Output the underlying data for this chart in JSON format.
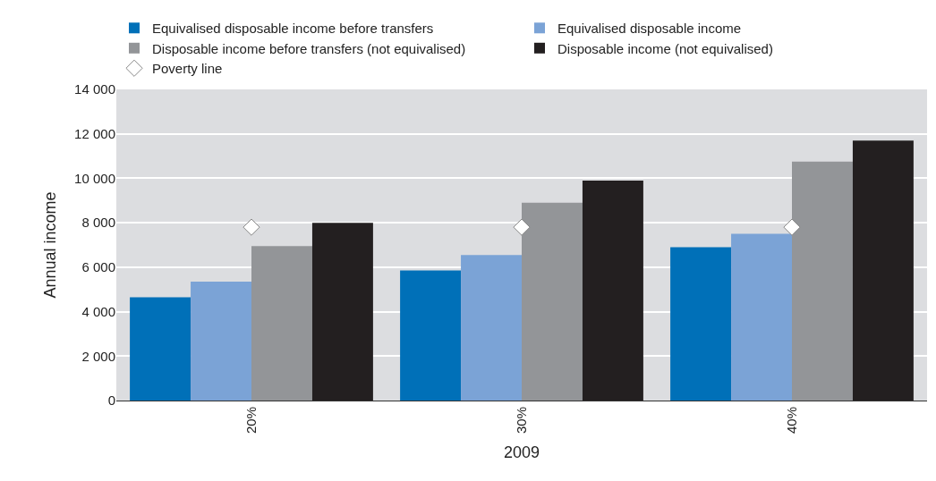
{
  "chart_data": {
    "type": "bar",
    "categories": [
      "20%",
      "30%",
      "40%"
    ],
    "xlabel": "2009",
    "ylabel": "Annual income",
    "series": [
      {
        "name": "Equivalised disposable income before transfers",
        "color": "#0070b8",
        "values": [
          4650,
          5850,
          6900
        ]
      },
      {
        "name": "Equivalised disposable income",
        "color": "#7ba3d6",
        "values": [
          5350,
          6550,
          7500
        ]
      },
      {
        "name": "Disposable income before transfers (not equivalised)",
        "color": "#939598",
        "values": [
          6950,
          8900,
          10750
        ]
      },
      {
        "name": "Disposable income (not equivalised)",
        "color": "#231f20",
        "values": [
          8000,
          9900,
          11700
        ]
      },
      {
        "name": "Poverty line",
        "type": "scatter",
        "marker": "diamond",
        "color": "#ffffff",
        "x": [
          "20%",
          "30%",
          "40%"
        ],
        "values": [
          7800,
          7800,
          7800
        ]
      }
    ],
    "ylim": [
      0,
      14000
    ],
    "yticks": [
      0,
      {
        "value": 2000,
        "label": "2 000"
      },
      {
        "value": 4000,
        "label": "4 000"
      },
      {
        "value": 6000,
        "label": "6 000"
      },
      {
        "value": 8000,
        "label": "8 000"
      },
      {
        "value": 10000,
        "label": "10 000"
      },
      {
        "value": 12000,
        "label": "12 000"
      },
      {
        "value": 14000,
        "label": "14 000"
      }
    ],
    "grid": "y",
    "legend": "top"
  }
}
